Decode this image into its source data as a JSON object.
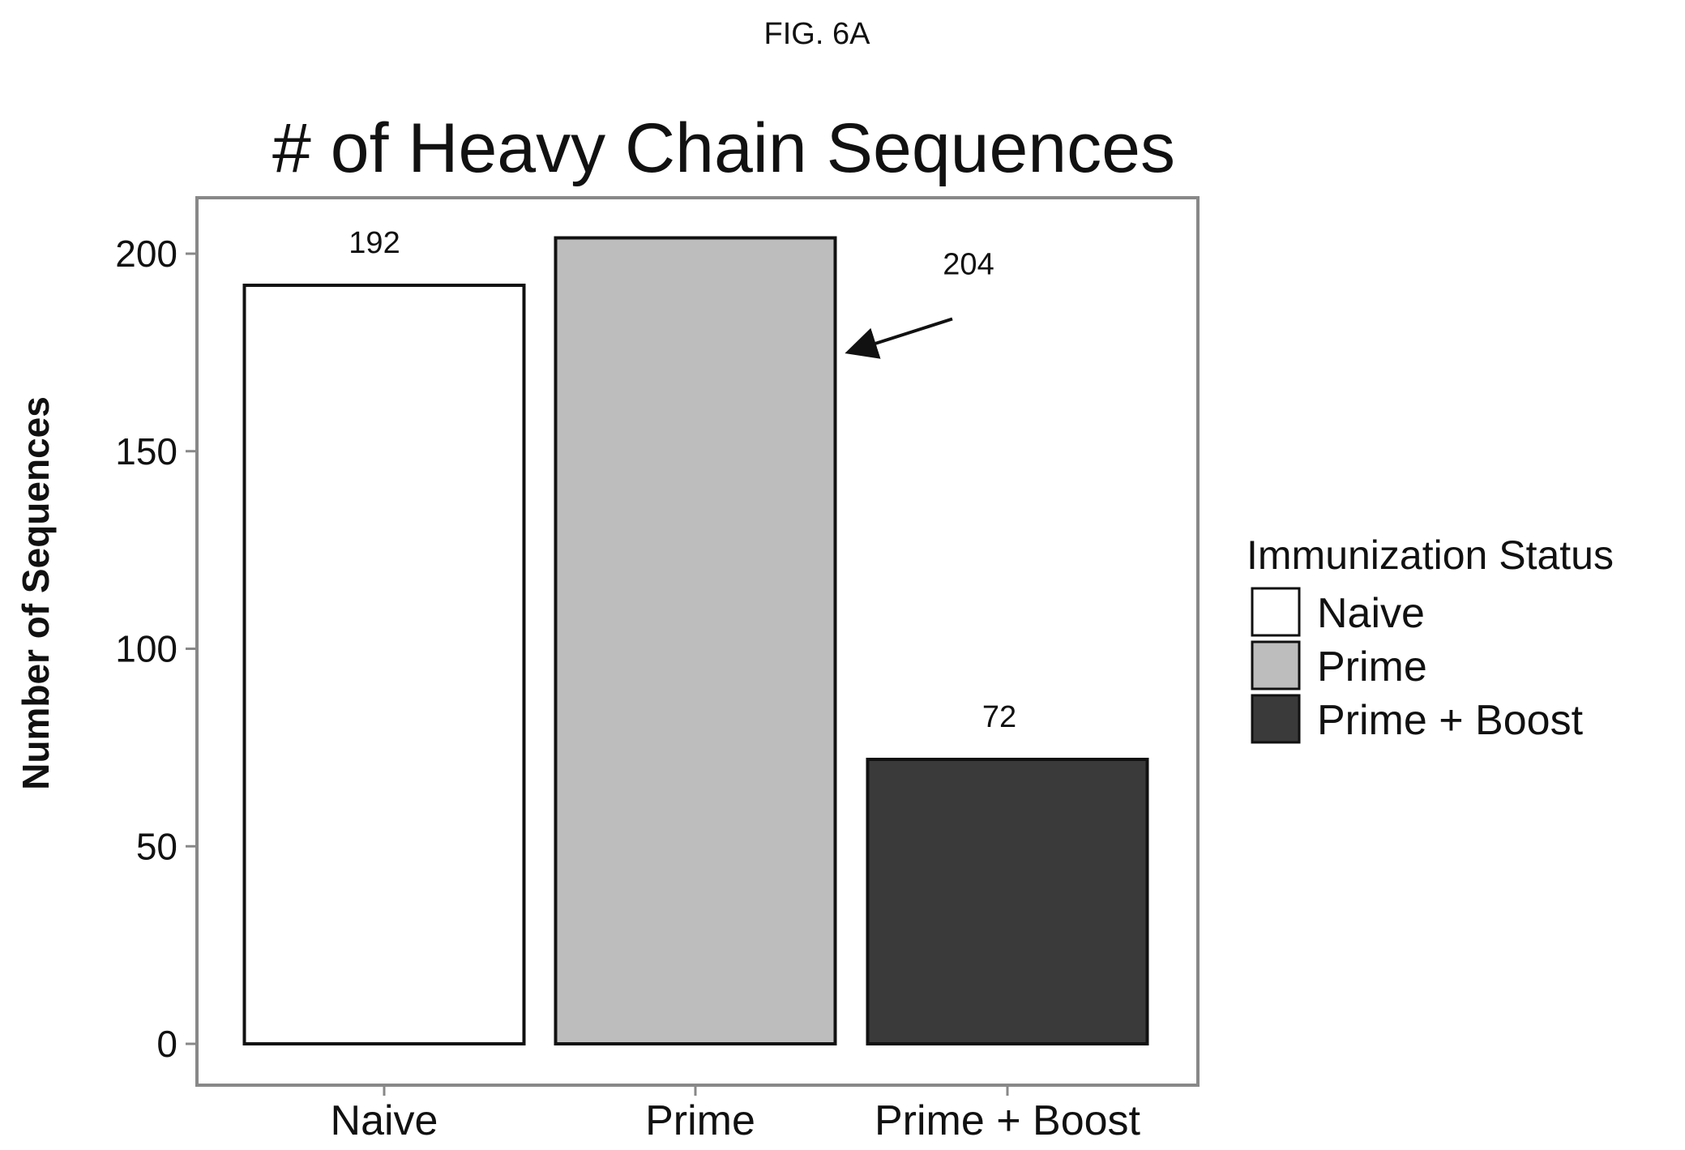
{
  "figure_label": "FIG. 6A",
  "chart_data": {
    "type": "bar",
    "title": "# of Heavy Chain Sequences",
    "xlabel": "",
    "ylabel": "Number of Sequences",
    "categories": [
      "Naive",
      "Prime",
      "Prime + Boost"
    ],
    "values": [
      192,
      204,
      72
    ],
    "data_labels": [
      "192",
      "204",
      "72"
    ],
    "ylim": [
      0,
      211
    ],
    "yticks": [
      0,
      50,
      100,
      150,
      200
    ],
    "grid": false,
    "colors": [
      "#ffffff",
      "#bdbdbd",
      "#3a3a3a"
    ],
    "legend": {
      "title": "Immunization Status",
      "placement": "right",
      "entries": [
        "Naive",
        "Prime",
        "Prime + Boost"
      ]
    },
    "annotations": [
      {
        "type": "arrow",
        "text": "204",
        "target_category": "Prime"
      }
    ]
  }
}
